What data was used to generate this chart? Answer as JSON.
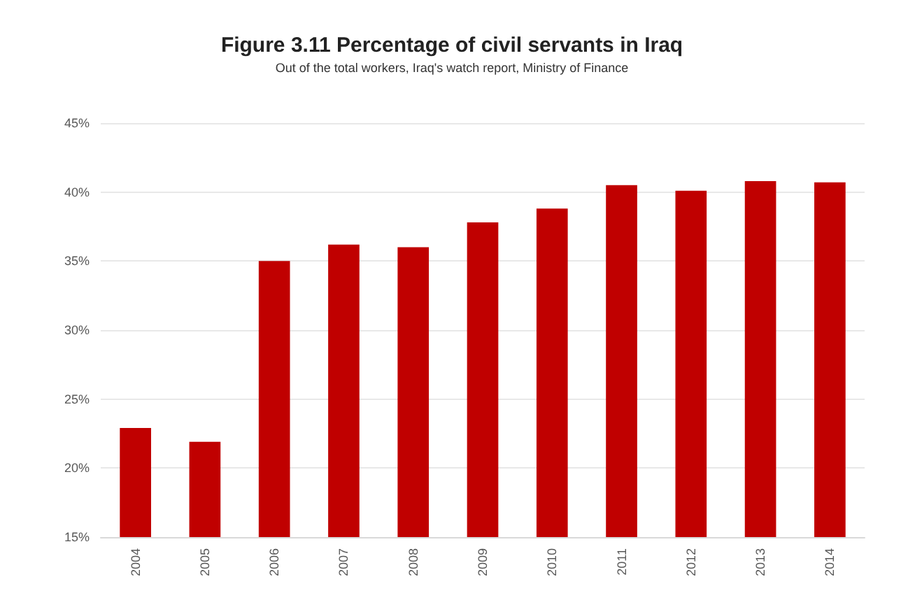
{
  "chart_data": {
    "type": "bar",
    "title": "Figure 3.11 Percentage of civil servants in Iraq",
    "subtitle": "Out of the total workers, Iraq's watch report, Ministry of Finance",
    "categories": [
      "2004",
      "2005",
      "2006",
      "2007",
      "2008",
      "2009",
      "2010",
      "2011",
      "2012",
      "2013",
      "2014"
    ],
    "values": [
      22.9,
      21.9,
      35.0,
      36.2,
      36.0,
      37.8,
      38.8,
      40.5,
      40.1,
      40.8,
      40.7
    ],
    "color": "#c00000",
    "ylim": [
      15,
      45
    ],
    "yticks": [
      {
        "value": 15,
        "label": "15%"
      },
      {
        "value": 20,
        "label": "20%"
      },
      {
        "value": 25,
        "label": "25%"
      },
      {
        "value": 30,
        "label": "30%"
      },
      {
        "value": 35,
        "label": "35%"
      },
      {
        "value": 40,
        "label": "40%"
      },
      {
        "value": 45,
        "label": "45%"
      }
    ],
    "grid": "y"
  }
}
